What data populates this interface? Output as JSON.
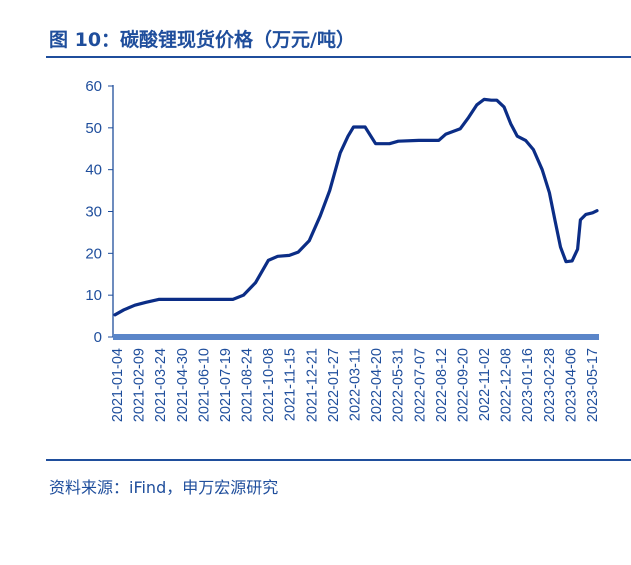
{
  "header": {
    "title": "图 10：碳酸锂现货价格（万元/吨）"
  },
  "footer": {
    "source": "资料来源：iFind，申万宏源研究"
  },
  "colors": {
    "accent": "#1f4e9c",
    "line": "#0b2d86"
  },
  "chart_data": {
    "type": "line",
    "title": "图 10：碳酸锂现货价格（万元/吨）",
    "xlabel": "",
    "ylabel": "",
    "ylim": [
      0,
      60
    ],
    "yticks": [
      0,
      10,
      20,
      30,
      40,
      50,
      60
    ],
    "grid": false,
    "legend": "none",
    "xtick_labels": [
      "2021-01-04",
      "2021-02-09",
      "2021-03-24",
      "2021-04-30",
      "2021-06-10",
      "2021-07-19",
      "2021-08-24",
      "2021-10-08",
      "2021-11-15",
      "2021-12-21",
      "2022-01-27",
      "2022-03-11",
      "2022-04-20",
      "2022-05-31",
      "2022-07-07",
      "2022-08-12",
      "2022-09-20",
      "2022-11-02",
      "2022-12-08",
      "2023-01-16",
      "2023-02-28",
      "2023-04-06",
      "2023-05-17"
    ],
    "series": [
      {
        "x": [
          "2021-01-04",
          "2021-01-20",
          "2021-02-09",
          "2021-03-01",
          "2021-03-24",
          "2021-04-30",
          "2021-06-10",
          "2021-07-19",
          "2021-08-05",
          "2021-08-24",
          "2021-09-15",
          "2021-10-08",
          "2021-10-25",
          "2021-11-15",
          "2021-12-01",
          "2021-12-21",
          "2022-01-10",
          "2022-01-27",
          "2022-02-15",
          "2022-03-01",
          "2022-03-11",
          "2022-03-25",
          "2022-04-01",
          "2022-04-20",
          "2022-05-15",
          "2022-05-31",
          "2022-07-07",
          "2022-08-12",
          "2022-08-25",
          "2022-09-20",
          "2022-10-05",
          "2022-10-20",
          "2022-11-02",
          "2022-11-15",
          "2022-11-25",
          "2022-12-08",
          "2022-12-20",
          "2023-01-01",
          "2023-01-16",
          "2023-01-30",
          "2023-02-15",
          "2023-02-28",
          "2023-03-10",
          "2023-03-20",
          "2023-03-30",
          "2023-04-10",
          "2023-04-20",
          "2023-04-25",
          "2023-05-05",
          "2023-05-17",
          "2023-05-25"
        ],
        "values": [
          5.3,
          6.5,
          7.6,
          8.3,
          9.0,
          9.0,
          9.0,
          9.0,
          9.0,
          10.0,
          13.0,
          18.3,
          19.3,
          19.5,
          20.3,
          23.0,
          29.0,
          35.0,
          44.0,
          48.0,
          50.2,
          50.2,
          50.2,
          46.2,
          46.2,
          46.8,
          47.0,
          47.0,
          48.5,
          49.8,
          52.5,
          55.5,
          56.8,
          56.6,
          56.6,
          55.0,
          51.0,
          48.0,
          47.0,
          44.8,
          40.0,
          34.5,
          28.0,
          21.5,
          18.0,
          18.2,
          21.0,
          28.0,
          29.3,
          29.7,
          30.2
        ]
      }
    ]
  }
}
